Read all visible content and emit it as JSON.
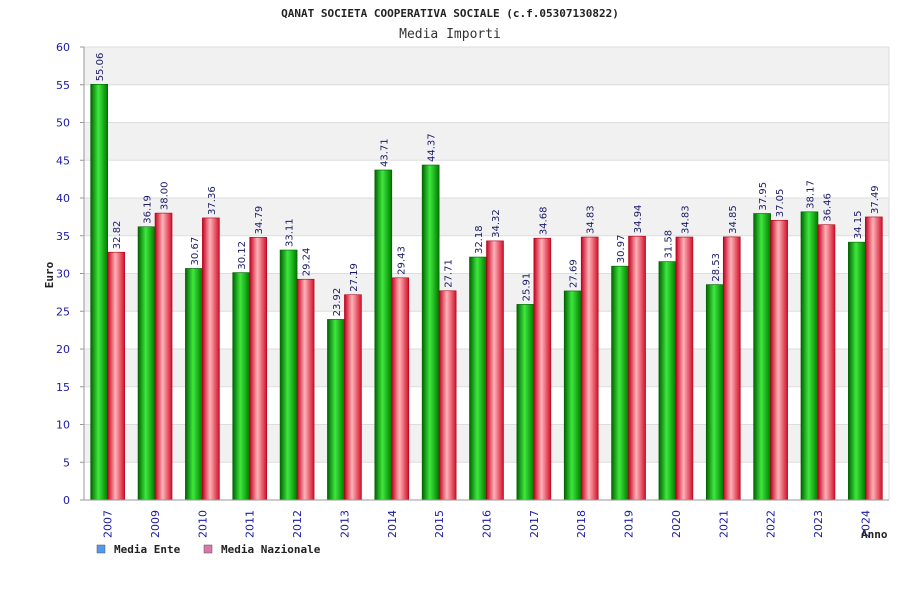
{
  "chart_data": {
    "type": "bar",
    "title": "QANAT SOCIETA COOPERATIVA SOCIALE (c.f.05307130822)",
    "subtitle": "Media Importi",
    "xlabel": "Anno",
    "ylabel": "Euro",
    "ylim": [
      0,
      60
    ],
    "ytick_step": 5,
    "yticks": [
      "0",
      "5",
      "10",
      "15",
      "20",
      "25",
      "30",
      "35",
      "40",
      "45",
      "50",
      "55",
      "60"
    ],
    "categories": [
      "2007",
      "2009",
      "2010",
      "2011",
      "2012",
      "2013",
      "2014",
      "2015",
      "2016",
      "2017",
      "2018",
      "2019",
      "2020",
      "2021",
      "2022",
      "2023",
      "2024"
    ],
    "series": [
      {
        "name": "Media Ente",
        "color": "#00a000",
        "legend_color": "#5599ee",
        "values": [
          55.06,
          36.19,
          30.67,
          30.12,
          33.11,
          23.92,
          43.71,
          44.37,
          32.18,
          25.91,
          27.69,
          30.97,
          31.58,
          28.53,
          37.95,
          38.17,
          34.15
        ],
        "labels": [
          "55.06",
          "36.19",
          "30.67",
          "30.12",
          "33.11",
          "23.92",
          "43.71",
          "44.37",
          "32.18",
          "25.91",
          "27.69",
          "30.97",
          "31.58",
          "28.53",
          "37.95",
          "38.17",
          "34.15"
        ]
      },
      {
        "name": "Media Nazionale",
        "color": "#e0303a",
        "legend_color": "#dd77aa",
        "values": [
          32.82,
          38.0,
          37.36,
          34.79,
          29.24,
          27.19,
          29.43,
          27.71,
          34.32,
          34.68,
          34.83,
          34.94,
          34.83,
          34.85,
          37.05,
          36.46,
          37.49
        ],
        "labels": [
          "32.82",
          "38.00",
          "37.36",
          "34.79",
          "29.24",
          "27.19",
          "29.43",
          "27.71",
          "34.32",
          "34.68",
          "34.83",
          "34.94",
          "34.83",
          "34.85",
          "37.05",
          "36.46",
          "37.49"
        ]
      }
    ],
    "grid": true,
    "legend": "bottom-left"
  }
}
